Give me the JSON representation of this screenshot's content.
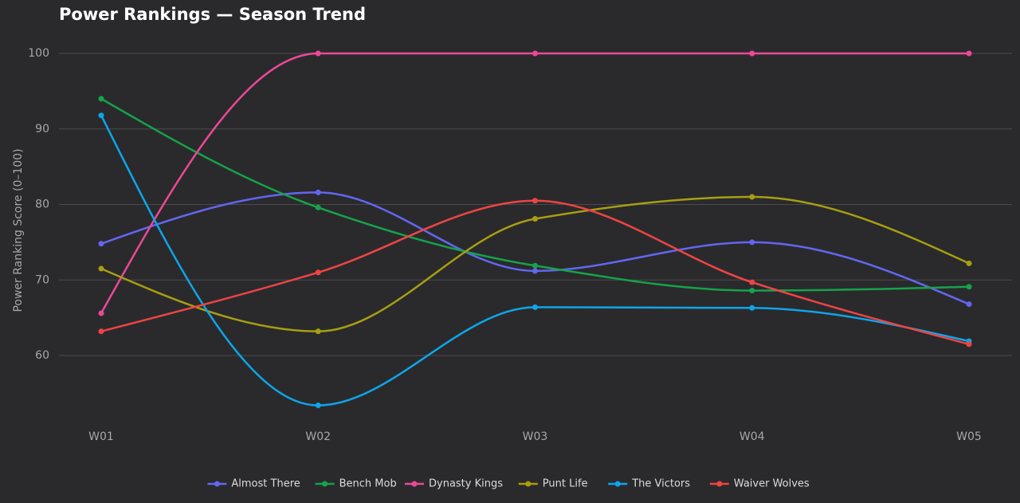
{
  "chart_data": {
    "type": "line",
    "title": "Power Rankings — Season Trend",
    "xlabel": "",
    "ylabel": "Power Ranking Score (0–100)",
    "categories": [
      "W01",
      "W02",
      "W03",
      "W04",
      "W05"
    ],
    "yticks": [
      60,
      70,
      80,
      90,
      100
    ],
    "ylim": [
      50.5,
      102.5
    ],
    "grid": true,
    "legend_position": "bottom",
    "series": [
      {
        "name": "Almost There",
        "color": "#6366f1",
        "values": [
          74.8,
          81.6,
          71.2,
          75.0,
          66.8
        ]
      },
      {
        "name": "Bench Mob",
        "color": "#16a34a",
        "values": [
          94.0,
          79.6,
          71.9,
          68.6,
          69.1
        ]
      },
      {
        "name": "Dynasty Kings",
        "color": "#ec4899",
        "values": [
          65.6,
          100,
          100,
          100,
          100
        ]
      },
      {
        "name": "Punt Life",
        "color": "#a89e12",
        "values": [
          71.5,
          63.2,
          78.1,
          81.0,
          72.2
        ]
      },
      {
        "name": "The Victors",
        "color": "#0ea5e9",
        "values": [
          91.8,
          53.4,
          66.4,
          66.3,
          61.9
        ]
      },
      {
        "name": "Waiver Wolves",
        "color": "#ef4444",
        "values": [
          63.2,
          71.0,
          80.5,
          69.7,
          61.5
        ]
      }
    ]
  }
}
